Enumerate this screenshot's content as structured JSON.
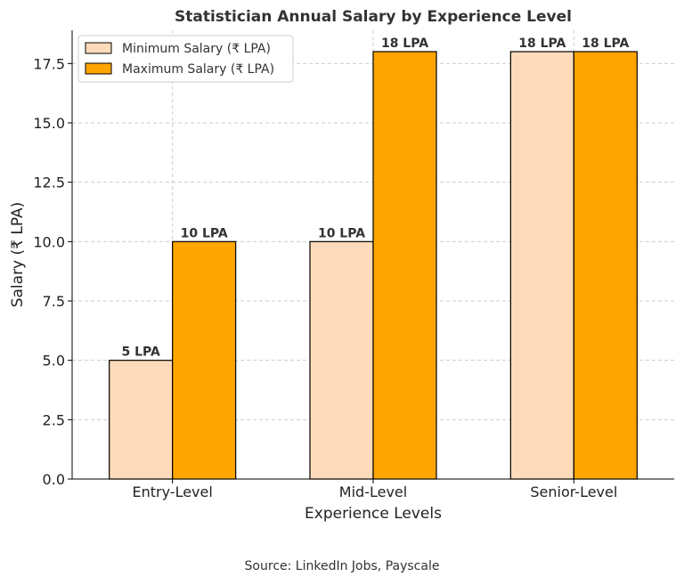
{
  "chart_data": {
    "type": "bar",
    "title": "Statistician Annual Salary by Experience Level",
    "xlabel": "Experience Levels",
    "ylabel": "Salary (₹ LPA)",
    "categories": [
      "Entry-Level",
      "Mid-Level",
      "Senior-Level"
    ],
    "series": [
      {
        "name": "Minimum Salary (₹ LPA)",
        "values": [
          5,
          10,
          18
        ],
        "labels": [
          "5 LPA",
          "10 LPA",
          "18 LPA"
        ],
        "color": "#FDDBBA"
      },
      {
        "name": "Maximum Salary (₹ LPA)",
        "values": [
          10,
          18,
          18
        ],
        "labels": [
          "10 LPA",
          "18 LPA",
          "18 LPA"
        ],
        "color": "#FFA500"
      }
    ],
    "ylim": [
      0,
      18.9
    ],
    "yticks": [
      "0.0",
      "2.5",
      "5.0",
      "7.5",
      "10.0",
      "12.5",
      "15.0",
      "17.5"
    ],
    "grid": true,
    "legend": "top-left"
  },
  "footer": {
    "source": "Source: LinkedIn Jobs, Payscale"
  }
}
